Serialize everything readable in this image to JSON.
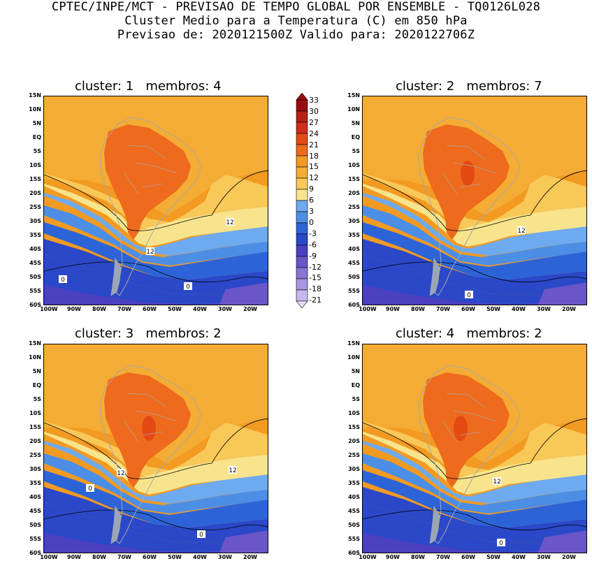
{
  "header": {
    "line1": "CPTEC/INPE/MCT - PREVISAO DE TEMPO GLOBAL POR ENSEMBLE - TQ0126L028",
    "line2": "Cluster Medio para a Temperatura (C) em 850 hPa",
    "line3": "Previsao de: 2020121500Z   Valido para: 2020122706Z"
  },
  "colors": {
    "c_-21": "#e6dcf6",
    "c_-18": "#c8b8ee",
    "c_-15": "#a995e0",
    "c_-12": "#8a74d4",
    "c_-9": "#6a56c8",
    "c_-6": "#4a40c0",
    "c_-3": "#2a48c8",
    "c_0": "#2c64d8",
    "c_3": "#4c8ee6",
    "c_6": "#6eaaf0",
    "c_9": "#f8e48c",
    "c_12": "#f8c858",
    "c_15": "#f4ac34",
    "c_18": "#f29a22",
    "c_21": "#ee6a1c",
    "c_24": "#e44a14",
    "c_27": "#d22c1c",
    "c_30": "#b82018",
    "c_33": "#980c10",
    "border": "#a8a8a8"
  },
  "colorbar": {
    "labels": [
      "33",
      "30",
      "27",
      "24",
      "21",
      "18",
      "15",
      "12",
      "9",
      "6",
      "3",
      "0",
      "-3",
      "-6",
      "-9",
      "-12",
      "-15",
      "-18",
      "-21"
    ]
  },
  "lat_labels": [
    "15N",
    "10N",
    "5N",
    "EQ",
    "5S",
    "10S",
    "15S",
    "20S",
    "25S",
    "30S",
    "35S",
    "40S",
    "45S",
    "50S",
    "55S",
    "60S"
  ],
  "lon_labels": [
    "100W",
    "90W",
    "80W",
    "70W",
    "60W",
    "50W",
    "40W",
    "30W",
    "20W"
  ],
  "panels": [
    {
      "cluster_label": "cluster:",
      "cluster_num": "1",
      "membros_label": "membros:",
      "membros_num": "4",
      "contour_labels": [
        "12",
        "12",
        "0",
        "0"
      ]
    },
    {
      "cluster_label": "cluster:",
      "cluster_num": "2",
      "membros_label": "membros:",
      "membros_num": "7",
      "contour_labels": [
        "12",
        "0"
      ]
    },
    {
      "cluster_label": "cluster:",
      "cluster_num": "3",
      "membros_label": "membros:",
      "membros_num": "2",
      "contour_labels": [
        "12",
        "12",
        "0",
        "0"
      ]
    },
    {
      "cluster_label": "cluster:",
      "cluster_num": "4",
      "membros_label": "membros:",
      "membros_num": "2",
      "contour_labels": [
        "12",
        "0"
      ]
    }
  ]
}
